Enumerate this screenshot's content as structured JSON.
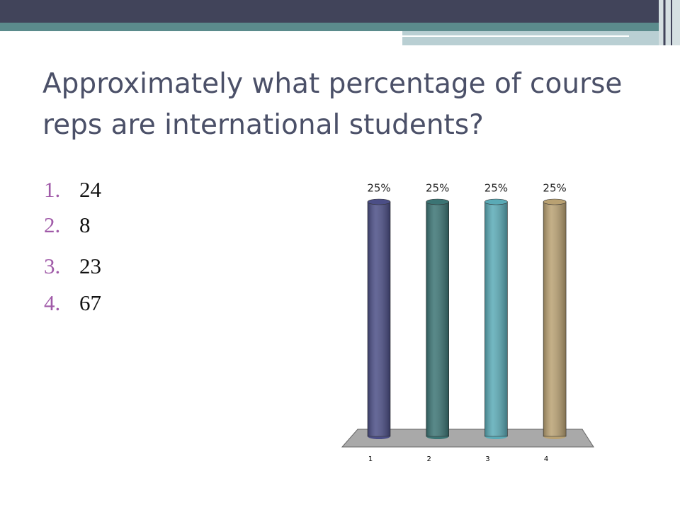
{
  "title": "Approximately what percentage of course reps are international students?",
  "list": [
    {
      "marker": "1.",
      "text": "24"
    },
    {
      "marker": "2.",
      "text": "8"
    },
    {
      "marker": "3.",
      "text": "23"
    },
    {
      "marker": "4.",
      "text": "67"
    }
  ],
  "chart_data": {
    "type": "bar",
    "categories": [
      "1",
      "2",
      "3",
      "4"
    ],
    "values": [
      25,
      25,
      25,
      25
    ],
    "value_labels": [
      "25%",
      "25%",
      "25%",
      "25%"
    ],
    "colors": [
      "#4b4e86",
      "#3b7474",
      "#5aaab6",
      "#b9a172"
    ]
  }
}
